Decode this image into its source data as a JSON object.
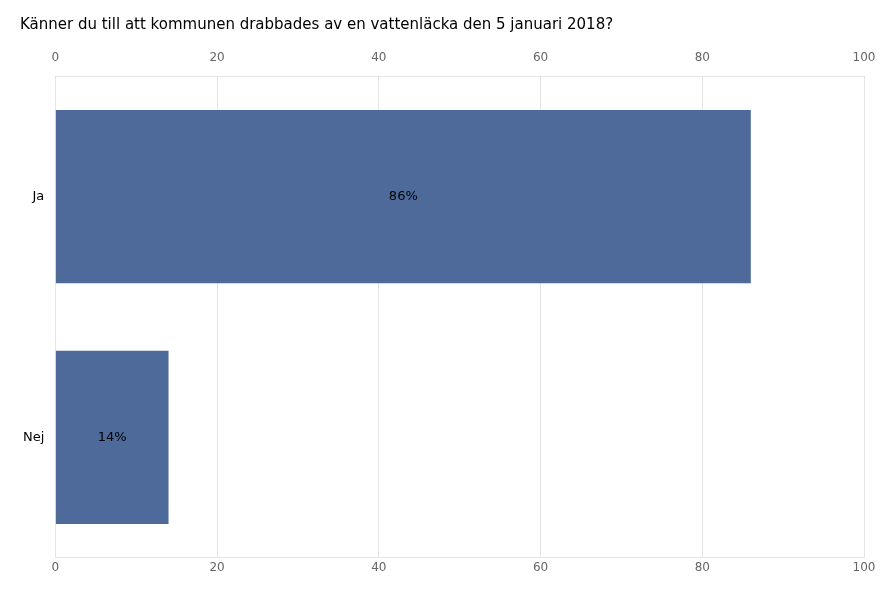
{
  "chart_data": {
    "type": "bar",
    "orientation": "horizontal",
    "title": "Känner du till att kommunen drabbades av en vattenläcka den 5 januari 2018?",
    "categories": [
      "Nej",
      "Ja"
    ],
    "values": [
      14,
      86
    ],
    "value_labels": [
      "14%",
      "86%"
    ],
    "data_labels": true,
    "color": "#4d6a9a",
    "xlim": [
      0,
      100
    ],
    "xticks": [
      0,
      20,
      40,
      60,
      80,
      100
    ],
    "grid": true
  }
}
